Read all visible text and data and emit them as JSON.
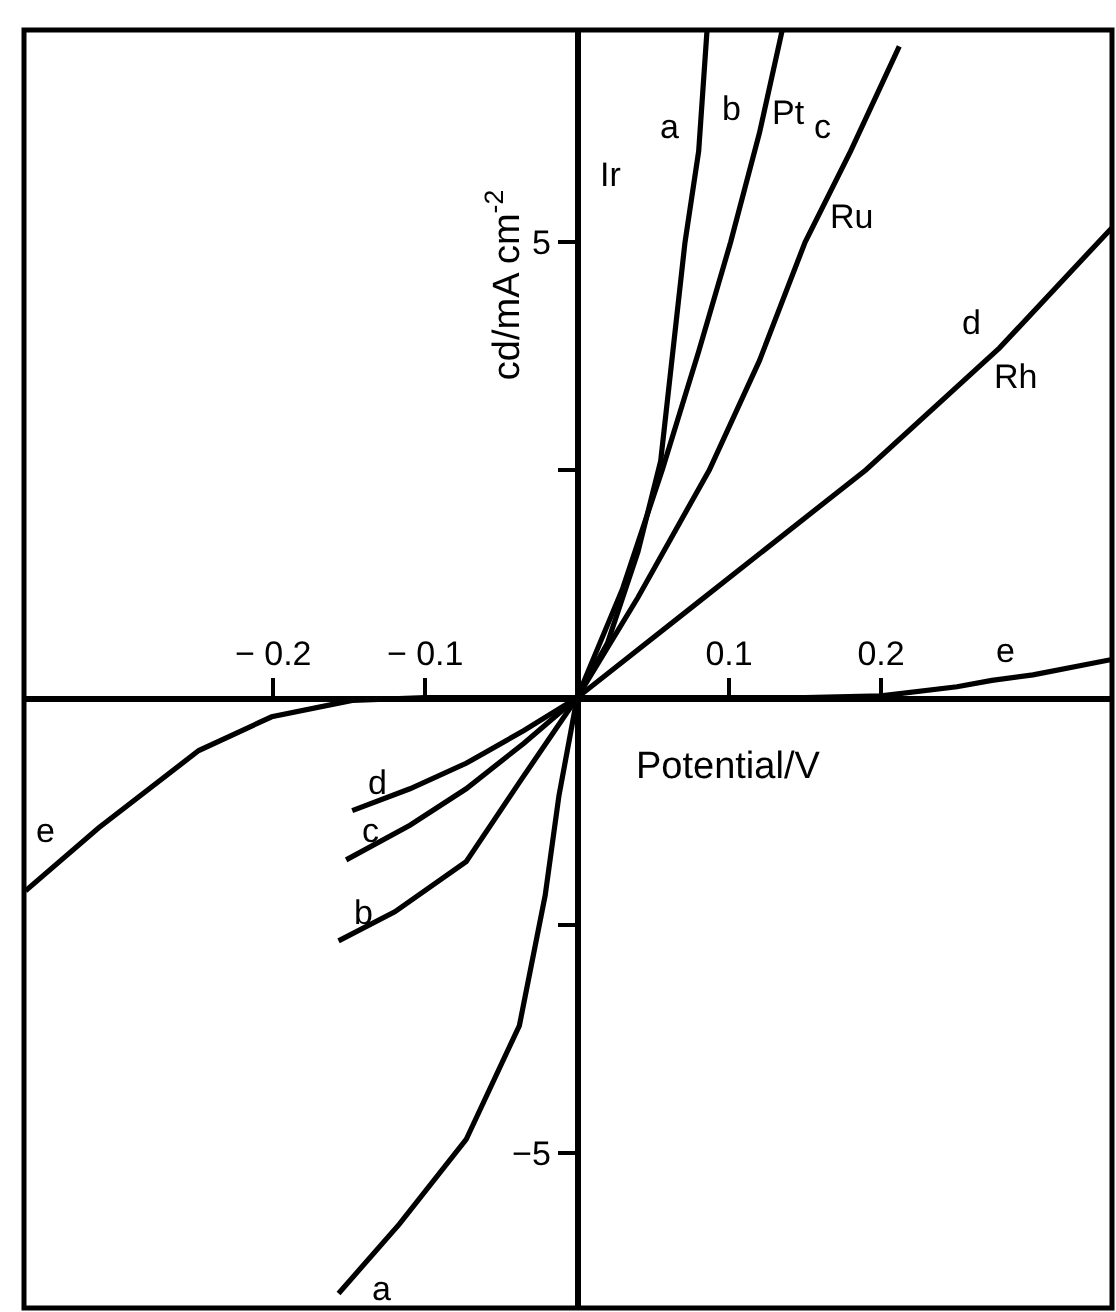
{
  "chart_data": {
    "type": "line",
    "xlabel": "Potential/V",
    "ylabel": "cd/mA cm$^{-2}$",
    "xlim": [
      -0.364,
      0.352
    ],
    "ylim": [
      -6.7,
      7.33
    ],
    "xticks": [
      {
        "value": -0.2,
        "label": "− 0.2"
      },
      {
        "value": -0.1,
        "label": "− 0.1"
      },
      0.1,
      0.2
    ],
    "yticks": [
      {
        "value": -5,
        "label": "−5"
      },
      {
        "value": -2.5,
        "label": null
      },
      {
        "value": 2.5,
        "label": null
      },
      5
    ],
    "grid": false,
    "legend": false,
    "marker": "none",
    "line_style": "solid",
    "series": [
      {
        "name": "a",
        "color": "#000000",
        "x": [
          -0.157,
          -0.117,
          -0.073,
          -0.038,
          -0.021,
          -0.012,
          0,
          0.02,
          0.04,
          0.055,
          0.071,
          0.08,
          0.0855
        ],
        "values": [
          -6.54,
          -5.78,
          -4.85,
          -3.6,
          -2.17,
          -1.08,
          0,
          0.6,
          1.6,
          2.6,
          5.0,
          6.0,
          7.33
        ]
      },
      {
        "name": "b",
        "color": "#000000",
        "x": [
          -0.157,
          -0.12,
          -0.073,
          -0.038,
          0,
          0.03,
          0.056,
          0.08,
          0.101,
          0.12,
          0.135
        ],
        "values": [
          -2.67,
          -2.35,
          -1.8,
          -0.93,
          0,
          1.2,
          2.5,
          3.8,
          5.0,
          6.2,
          7.33
        ]
      },
      {
        "name": "c",
        "color": "#000000",
        "x": [
          -0.152,
          -0.11,
          -0.073,
          -0.035,
          0,
          0.04,
          0.087,
          0.12,
          0.15,
          0.18,
          0.212
        ],
        "values": [
          -1.78,
          -1.4,
          -1.0,
          -0.5,
          0,
          1.1,
          2.5,
          3.7,
          5.0,
          6.0,
          7.15
        ]
      },
      {
        "name": "d",
        "color": "#000000",
        "x": [
          -0.148,
          -0.11,
          -0.073,
          -0.035,
          0,
          0.076,
          0.19,
          0.278,
          0.352
        ],
        "values": [
          -1.24,
          -1.0,
          -0.72,
          -0.36,
          0,
          1.0,
          2.5,
          3.84,
          5.16
        ]
      },
      {
        "name": "e",
        "color": "#000000",
        "x": [
          -0.363,
          -0.315,
          -0.249,
          -0.201,
          -0.148,
          -0.1,
          0,
          0.15,
          0.2,
          0.25,
          0.273,
          0.3,
          0.352
        ],
        "values": [
          -2.12,
          -1.43,
          -0.58,
          -0.21,
          -0.03,
          0,
          0,
          0,
          0.02,
          0.12,
          0.19,
          0.25,
          0.42
        ]
      }
    ],
    "annotations": [
      "Ir",
      "Pt",
      "Ru",
      "Rh"
    ]
  }
}
